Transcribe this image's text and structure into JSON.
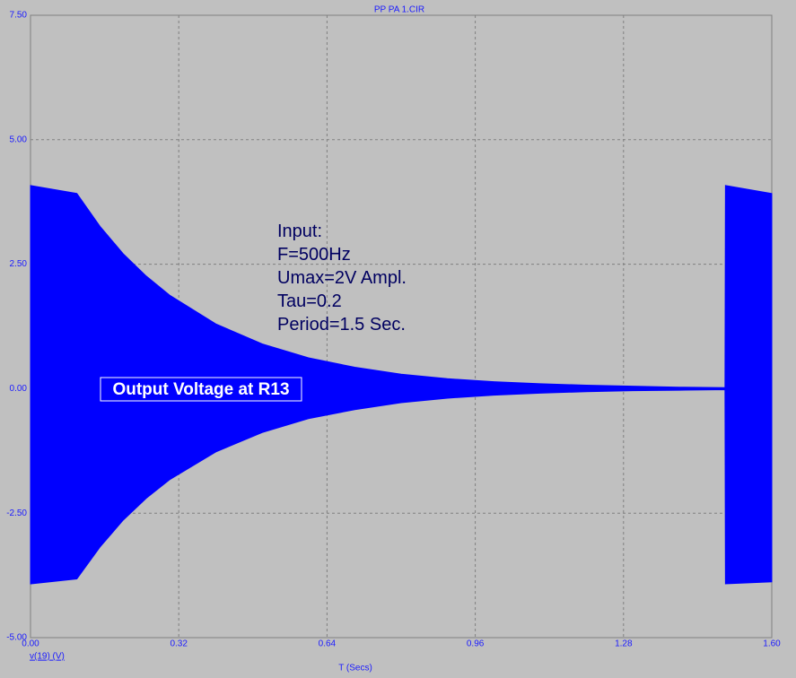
{
  "chart_data": {
    "type": "band",
    "title": "PP PA 1.CIR",
    "x_label": "T (Secs)",
    "annotations": [
      "Input:",
      "F=500Hz",
      "Umax=2V Ampl.",
      "Tau=0.2",
      "Period=1.5 Sec."
    ],
    "series_label": "Output Voltage at R13",
    "x": [
      0,
      0.1,
      0.15,
      0.2,
      0.25,
      0.3,
      0.4,
      0.5,
      0.6,
      0.7,
      0.8,
      0.9,
      1.0,
      1.1,
      1.2,
      1.3,
      1.4,
      1.499,
      1.5,
      1.6
    ],
    "series": [
      {
        "name": "v(19) (V)",
        "color": "#0000ff",
        "high": [
          4.08,
          3.92,
          3.26,
          2.71,
          2.26,
          1.88,
          1.3,
          0.9,
          0.62,
          0.43,
          0.29,
          0.2,
          0.14,
          0.1,
          0.07,
          0.05,
          0.03,
          0.02,
          4.08,
          3.92
        ],
        "low": [
          -3.92,
          -3.82,
          -3.18,
          -2.64,
          -2.2,
          -1.83,
          -1.27,
          -0.88,
          -0.6,
          -0.42,
          -0.28,
          -0.19,
          -0.13,
          -0.09,
          -0.06,
          -0.04,
          -0.03,
          -0.02,
          -3.92,
          -3.88
        ]
      }
    ],
    "xlim": [
      0,
      1.6
    ],
    "ylim": [
      -5,
      7.5
    ],
    "xticks": [
      {
        "value": 0,
        "label": "0.00"
      },
      0.32,
      0.64,
      0.96,
      1.28,
      {
        "value": 1.6,
        "label": "1.60"
      }
    ],
    "yticks": [
      {
        "value": -5,
        "label": "-5.00"
      },
      {
        "value": -2.5,
        "label": "-2.50"
      },
      {
        "value": 0,
        "label": "0.00"
      },
      {
        "value": 2.5,
        "label": "2.50"
      },
      {
        "value": 5,
        "label": "5.00"
      },
      {
        "value": 7.5,
        "label": "7.50"
      }
    ],
    "grid": true
  }
}
